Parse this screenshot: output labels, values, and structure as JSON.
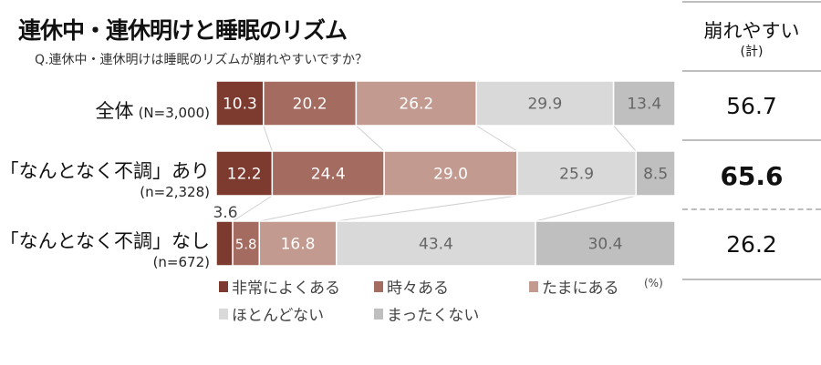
{
  "chart_data": {
    "type": "bar",
    "orientation": "horizontal",
    "stacked": true,
    "title": "連休中・連休明けと睡眠のリズム",
    "subtitle": "Q.連休中・連休明けは睡眠のリズムが崩れやすいですか？",
    "unit": "(%)",
    "xlim": [
      0,
      100
    ],
    "grid": false,
    "legend_position": "bottom",
    "categories": [
      {
        "label": "全体",
        "n": "(N=3,000)"
      },
      {
        "label": "「なんとなく不調」あり",
        "n": "(n=2,328)"
      },
      {
        "label": "「なんとなく不調」なし",
        "n": "(n=672)"
      }
    ],
    "series": [
      {
        "name": "非常によくある",
        "color": "#7d3b2f",
        "label_color": "#ffffff",
        "values": [
          10.3,
          12.2,
          3.6
        ]
      },
      {
        "name": "時々ある",
        "color": "#a46b60",
        "label_color": "#ffffff",
        "values": [
          20.2,
          24.4,
          5.8
        ]
      },
      {
        "name": "たまにある",
        "color": "#c39a90",
        "label_color": "#ffffff",
        "values": [
          26.2,
          29.0,
          16.8
        ]
      },
      {
        "name": "ほとんどない",
        "color": "#d9d9d9",
        "label_color": "#666666",
        "values": [
          29.9,
          25.9,
          43.4
        ]
      },
      {
        "name": "まったくない",
        "color": "#bfbfbf",
        "label_color": "#666666",
        "values": [
          13.4,
          8.5,
          30.4
        ]
      }
    ],
    "summary_column": {
      "header": "崩れやすい",
      "subheader": "(計)",
      "values": [
        "56.7",
        "65.6",
        "26.2"
      ],
      "emphasized_index": 1
    }
  }
}
